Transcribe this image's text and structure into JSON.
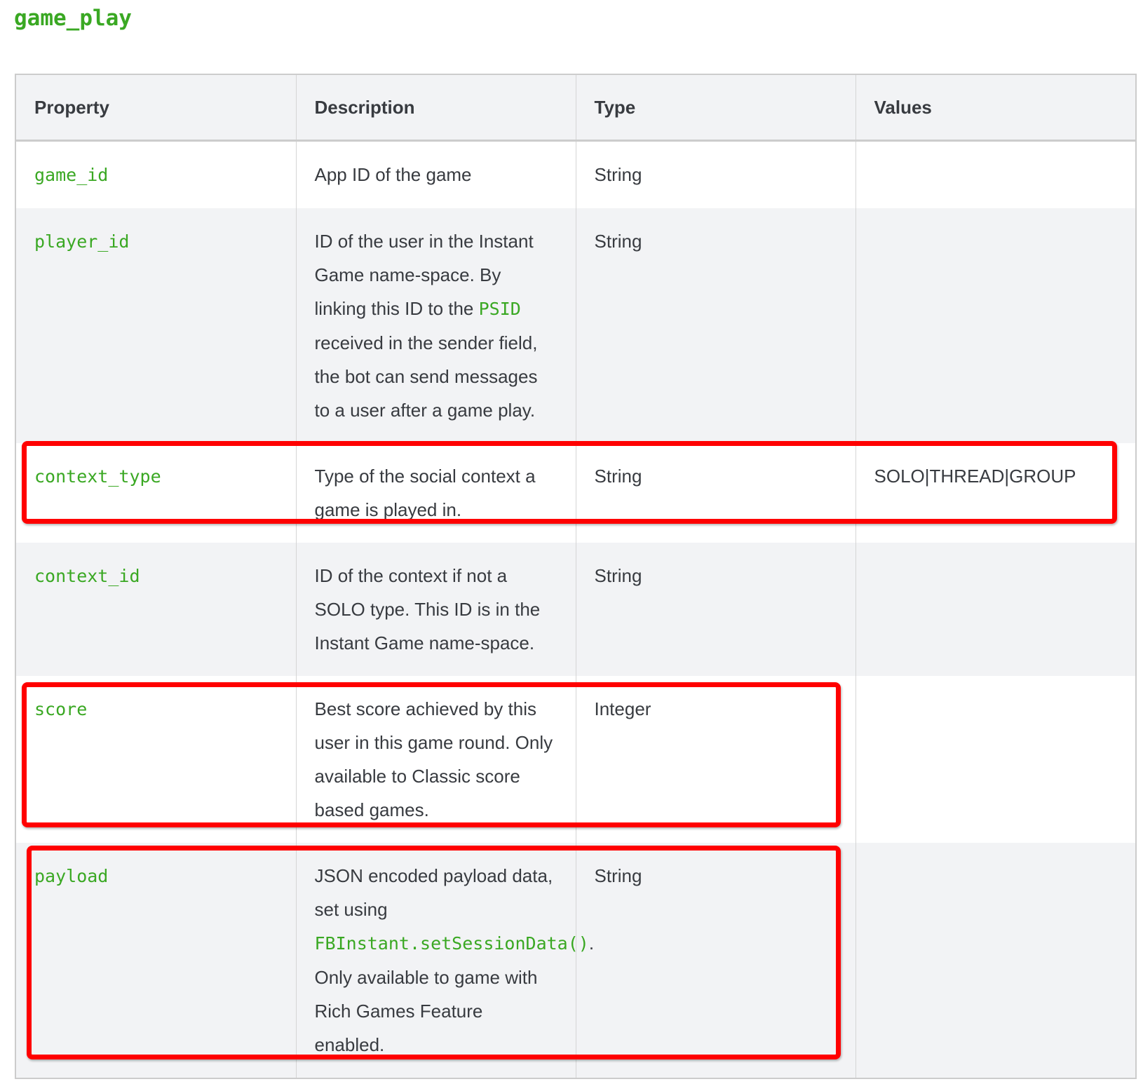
{
  "title": "game_play",
  "headers": [
    "Property",
    "Description",
    "Type",
    "Values"
  ],
  "rows": [
    {
      "property": "game_id",
      "description": "App ID of the game",
      "type": "String",
      "values": ""
    },
    {
      "property": "player_id",
      "description_before": "ID of the user in the Instant Game name-space. By linking this ID to the ",
      "description_code": "PSID",
      "description_after": " received in the sender field, the bot can send messages to a user after a game play.",
      "type": "String",
      "values": ""
    },
    {
      "property": "context_type",
      "description": "Type of the social context a game is played in.",
      "type": "String",
      "values": "SOLO|THREAD|GROUP"
    },
    {
      "property": "context_id",
      "description": "ID of the context if not a SOLO type. This ID is in the Instant Game name-space.",
      "type": "String",
      "values": ""
    },
    {
      "property": "score",
      "description": "Best score achieved by this user in this game round. Only available to Classic score based games.",
      "type": "Integer",
      "values": ""
    },
    {
      "property": "payload",
      "description_before": "JSON encoded payload data, set using ",
      "description_code": "FBInstant.setSessionData()",
      "description_after": ". Only available to game with Rich Games Feature enabled.",
      "type": "String",
      "values": ""
    }
  ],
  "highlight_color": "#ff0000",
  "accent_color": "#3aa823"
}
